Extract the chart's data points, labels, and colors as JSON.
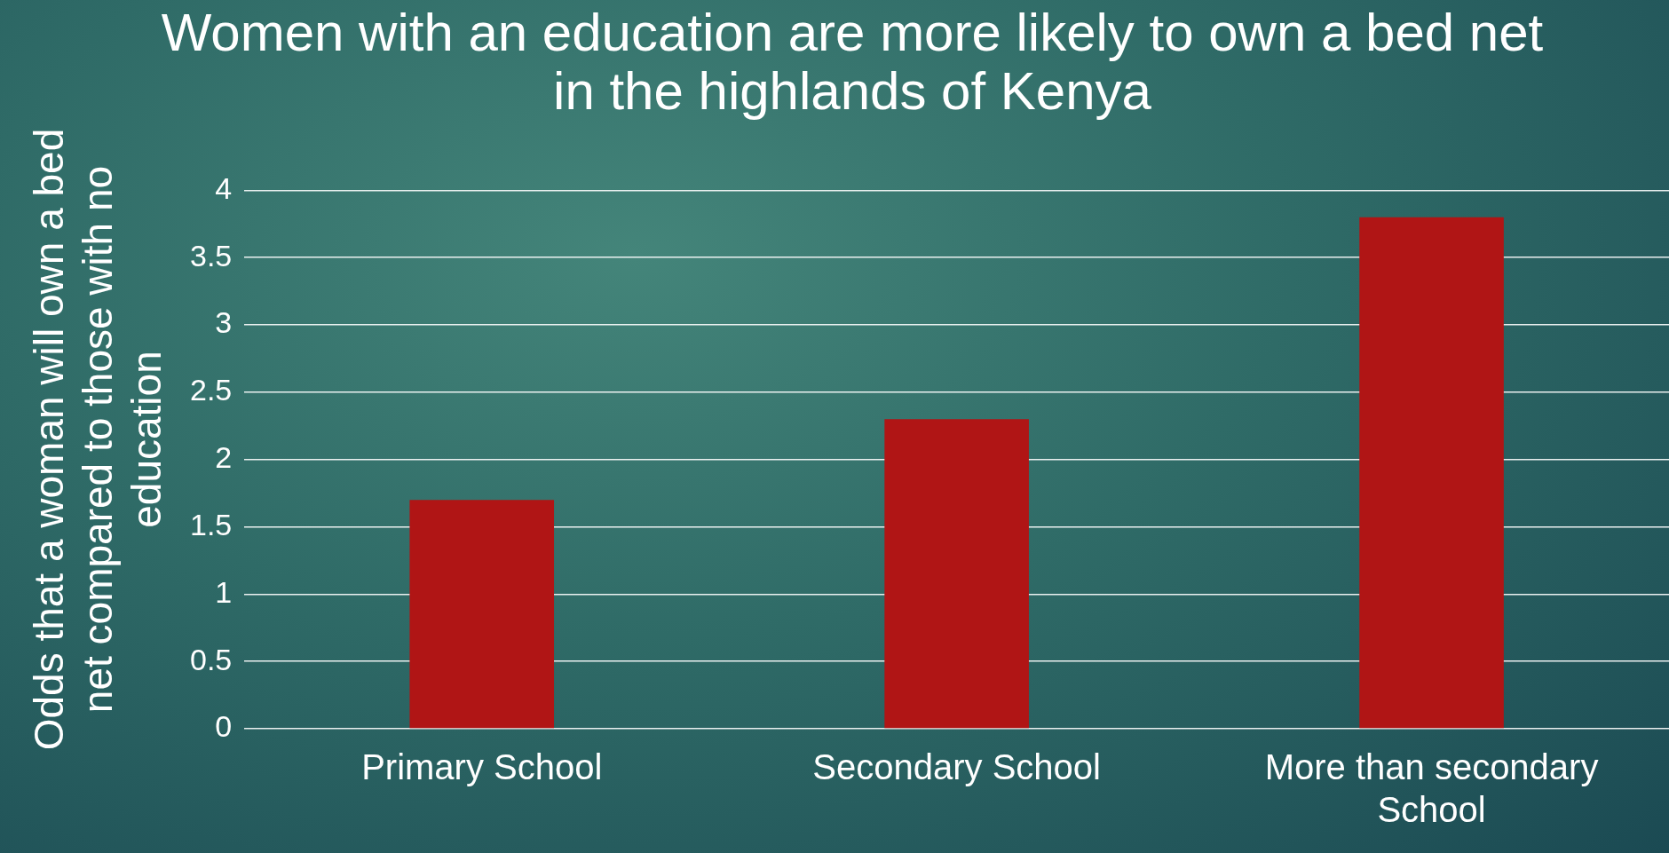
{
  "chart_data": {
    "type": "bar",
    "title": "Women with an education are more likely to own a bed net in the highlands of Kenya",
    "ylabel": "Odds that a woman will own a bed net compared to those with no education",
    "categories": [
      "Primary School",
      "Secondary School",
      "More than secondary School"
    ],
    "values": [
      1.7,
      2.3,
      3.8
    ],
    "color": "#b01515",
    "ylim": [
      0,
      4
    ],
    "yticks": [
      0,
      0.5,
      1,
      1.5,
      2,
      2.5,
      3,
      3.5,
      4
    ],
    "grid": "y"
  }
}
